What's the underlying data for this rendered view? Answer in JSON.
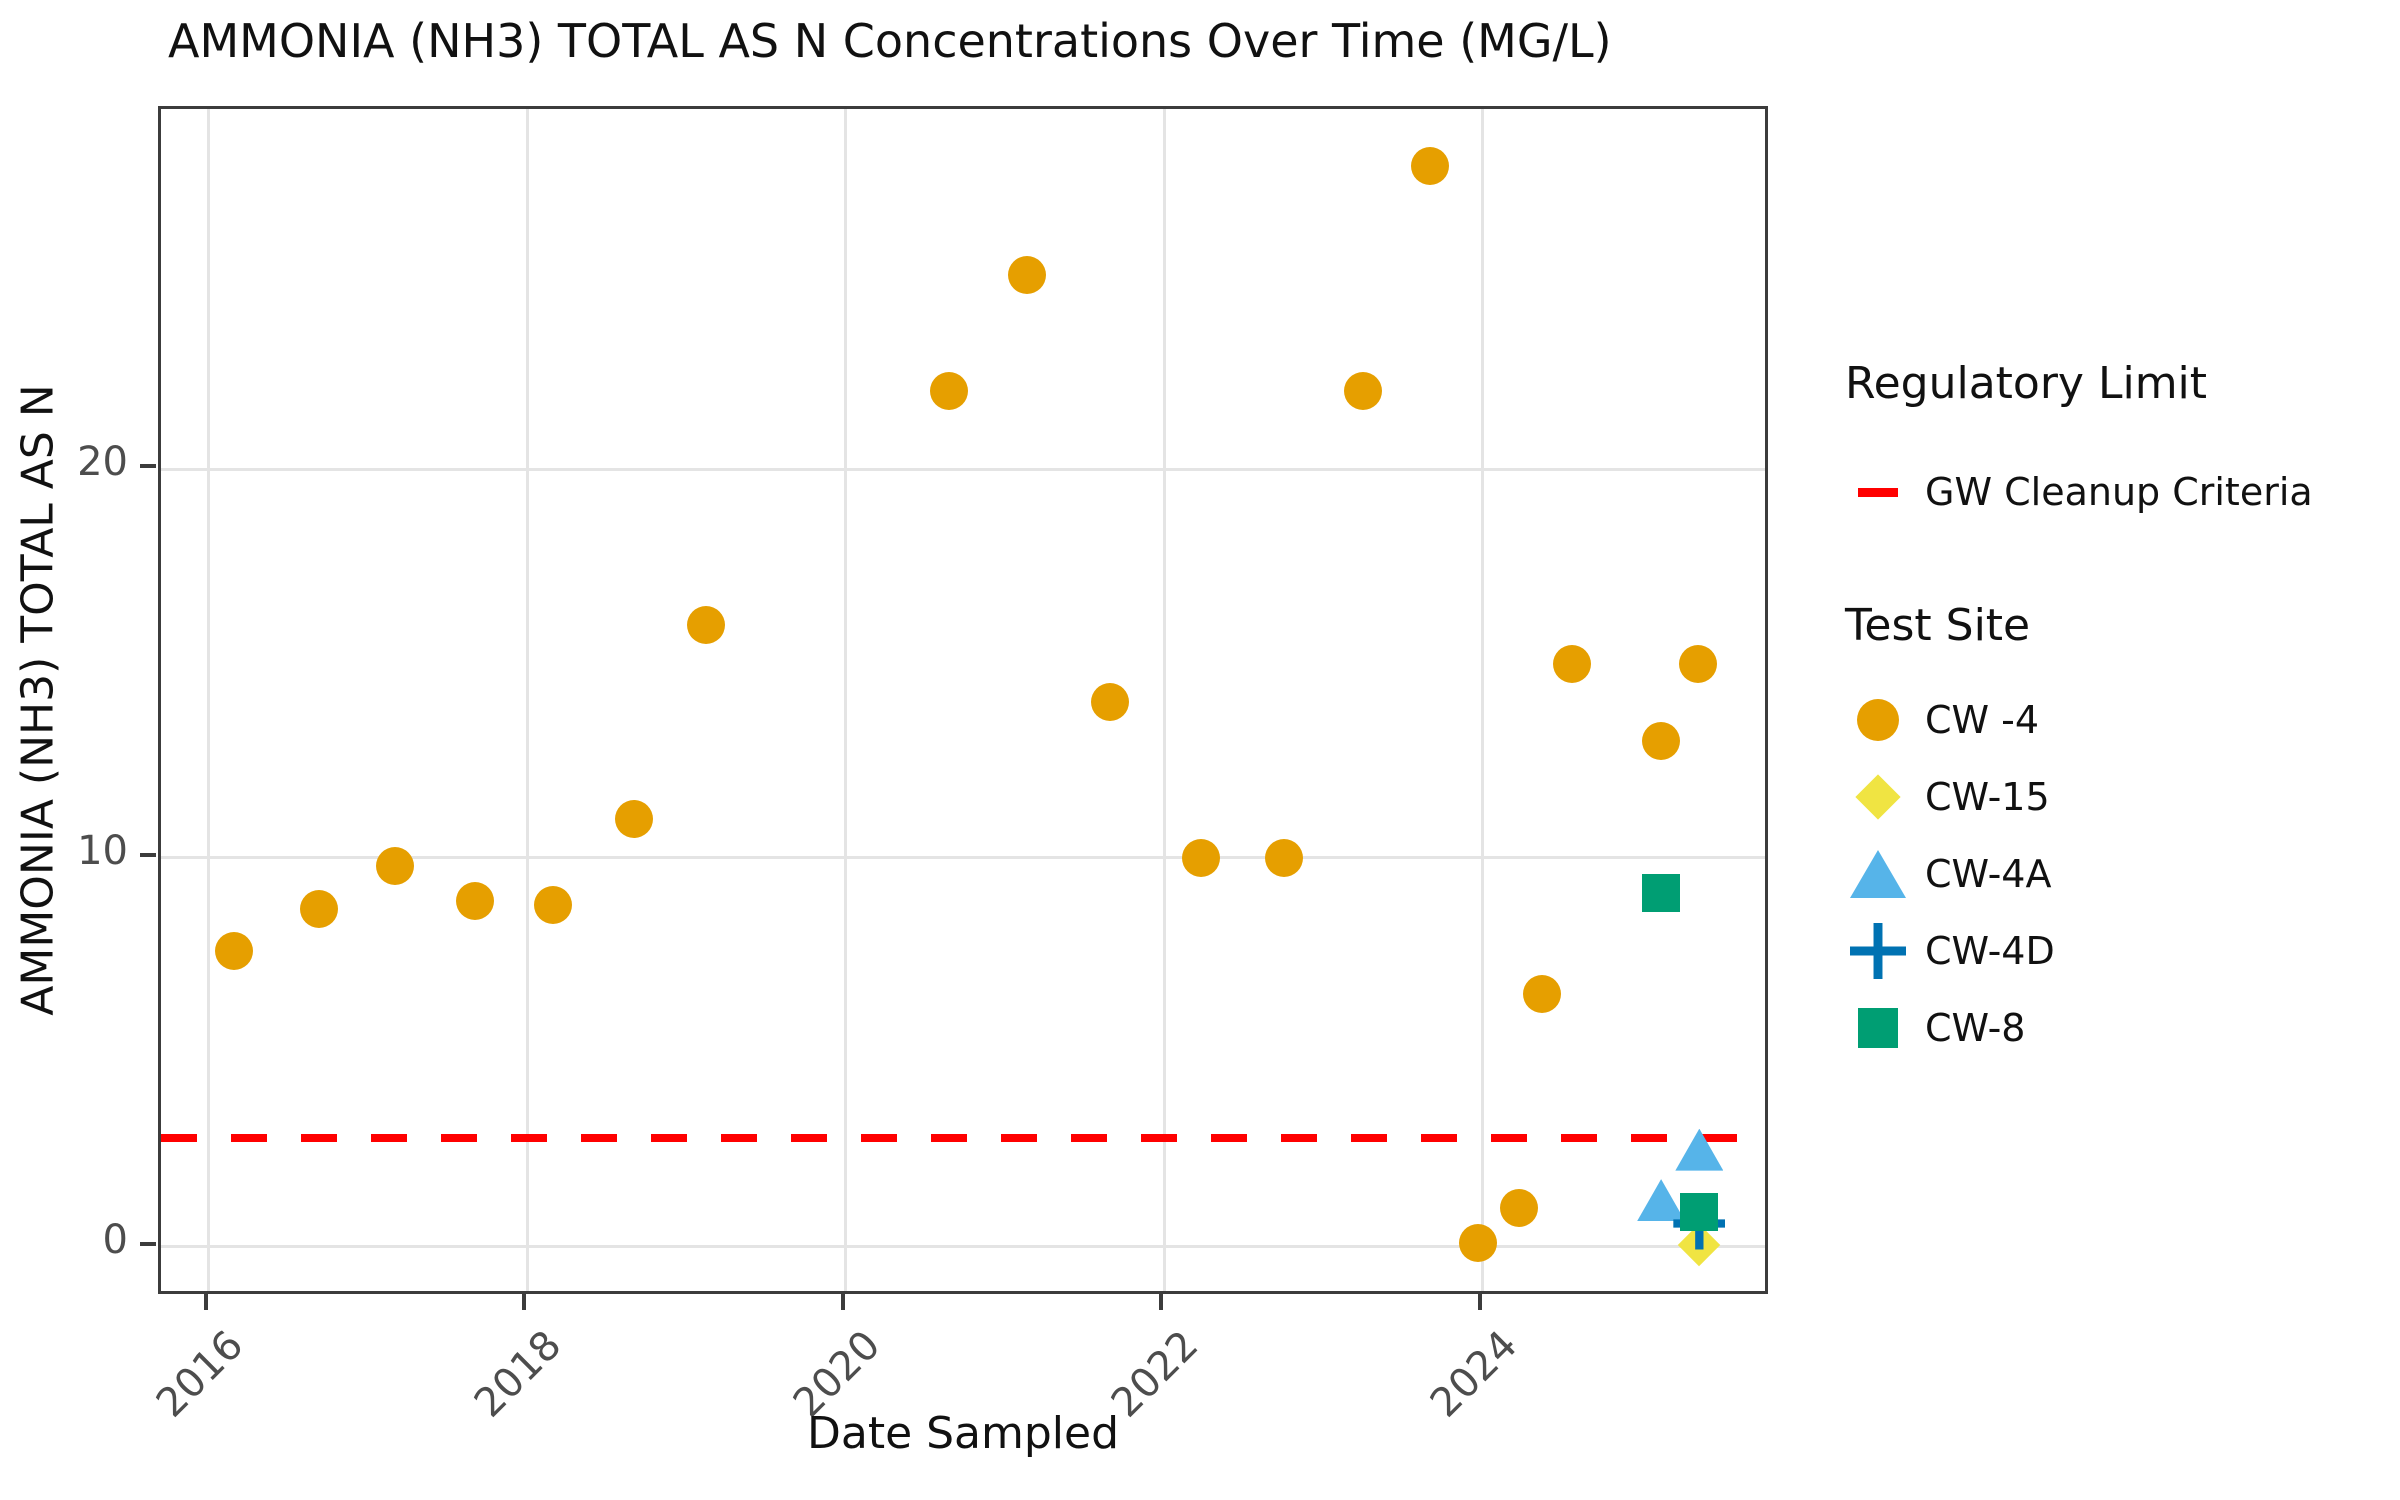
{
  "title": "AMMONIA (NH3) TOTAL AS N Concentrations Over Time (MG/L)",
  "axes": {
    "x_label": "Date Sampled",
    "y_label": "AMMONIA (NH3) TOTAL AS N",
    "x_tick_labels": [
      "2016",
      "2018",
      "2020",
      "2022",
      "2024"
    ],
    "y_tick_labels": [
      "0",
      "10",
      "20"
    ]
  },
  "legend": {
    "regulatory": {
      "title": "Regulatory Limit",
      "items": [
        {
          "label": "GW Cleanup Criteria",
          "key": "red-dash",
          "color": "#ff0000"
        }
      ]
    },
    "test_site": {
      "title": "Test Site",
      "items": [
        {
          "label": "CW -4",
          "marker": "circle",
          "color": "#e69f00"
        },
        {
          "label": "CW-15",
          "marker": "diamond",
          "color": "#f0e442"
        },
        {
          "label": "CW-4A",
          "marker": "triangle",
          "color": "#56b4e9"
        },
        {
          "label": "CW-4D",
          "marker": "plus",
          "color": "#0072b2"
        },
        {
          "label": "CW-8",
          "marker": "square",
          "color": "#009e73"
        }
      ]
    }
  },
  "chart_data": {
    "type": "scatter",
    "title": "AMMONIA (NH3) TOTAL AS N Concentrations Over Time (MG/L)",
    "xlabel": "Date Sampled",
    "ylabel": "AMMONIA (NH3) TOTAL AS N",
    "x_domain": [
      2015.7,
      2025.81
    ],
    "y_domain": [
      -1.29,
      29.26
    ],
    "x_ticks": [
      2016,
      2018,
      2020,
      2022,
      2024
    ],
    "y_ticks": [
      0,
      10,
      20
    ],
    "grid": true,
    "legend_position": "right",
    "reference_line": {
      "label": "GW Cleanup Criteria",
      "value": 2.8,
      "color": "#ff0000",
      "style": "dashed"
    },
    "series": [
      {
        "name": "CW -4",
        "marker": "circle",
        "color": "#e69f00",
        "points": [
          [
            2016.16,
            7.6
          ],
          [
            2016.69,
            8.7
          ],
          [
            2017.17,
            9.8
          ],
          [
            2017.67,
            8.9
          ],
          [
            2018.16,
            8.8
          ],
          [
            2018.67,
            11.0
          ],
          [
            2019.12,
            16.0
          ],
          [
            2020.65,
            22.0
          ],
          [
            2021.14,
            25.0
          ],
          [
            2021.66,
            14.0
          ],
          [
            2022.23,
            10.0
          ],
          [
            2022.75,
            10.0
          ],
          [
            2023.25,
            22.0
          ],
          [
            2023.67,
            27.8
          ],
          [
            2023.97,
            0.1
          ],
          [
            2024.23,
            1.0
          ],
          [
            2024.37,
            6.5
          ],
          [
            2024.56,
            15.0
          ],
          [
            2025.12,
            13.0
          ],
          [
            2025.35,
            15.0
          ]
        ]
      },
      {
        "name": "CW-15",
        "marker": "diamond",
        "color": "#f0e442",
        "points": [
          [
            2025.36,
            0.05
          ]
        ]
      },
      {
        "name": "CW-4A",
        "marker": "triangle",
        "color": "#56b4e9",
        "points": [
          [
            2025.12,
            1.2
          ],
          [
            2025.36,
            2.5
          ]
        ]
      },
      {
        "name": "CW-4D",
        "marker": "plus",
        "color": "#0072b2",
        "points": [
          [
            2025.36,
            0.6
          ]
        ]
      },
      {
        "name": "CW-8",
        "marker": "square",
        "color": "#009e73",
        "points": [
          [
            2025.12,
            9.1
          ],
          [
            2025.36,
            0.9
          ]
        ]
      }
    ]
  }
}
